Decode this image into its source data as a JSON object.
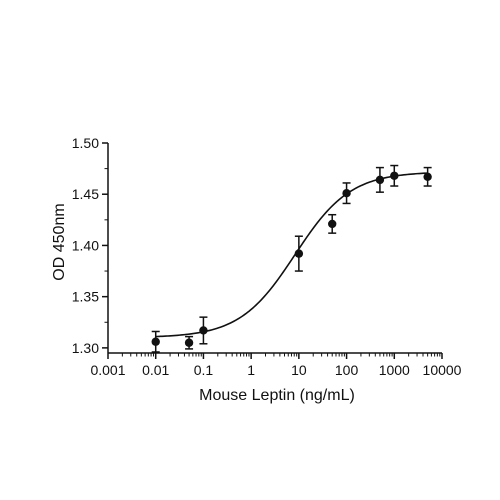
{
  "chart_data": {
    "type": "scatter",
    "title": "",
    "xlabel": "Mouse Leptin (ng/mL)",
    "ylabel": "OD 450nm",
    "x_scale": "log",
    "xlim": [
      0.001,
      10000
    ],
    "ylim": [
      1.295,
      1.5
    ],
    "x_ticks": [
      0.001,
      0.01,
      0.1,
      1,
      10,
      100,
      1000,
      10000
    ],
    "x_tick_labels": [
      "0.001",
      "0.01",
      "0.1",
      "1",
      "10",
      "100",
      "1000",
      "10000"
    ],
    "y_ticks": [
      1.3,
      1.35,
      1.4,
      1.45,
      1.5
    ],
    "y_tick_labels": [
      "1.30",
      "1.35",
      "1.40",
      "1.45",
      "1.50"
    ],
    "grid": false,
    "series": [
      {
        "points": [
          {
            "x": 0.01,
            "y": 1.306,
            "err": 0.01
          },
          {
            "x": 0.05,
            "y": 1.305,
            "err": 0.006
          },
          {
            "x": 0.1,
            "y": 1.317,
            "err": 0.013
          },
          {
            "x": 10,
            "y": 1.392,
            "err": 0.017
          },
          {
            "x": 50,
            "y": 1.421,
            "err": 0.009
          },
          {
            "x": 100,
            "y": 1.451,
            "err": 0.01
          },
          {
            "x": 500,
            "y": 1.464,
            "err": 0.012
          },
          {
            "x": 1000,
            "y": 1.468,
            "err": 0.01
          },
          {
            "x": 5000,
            "y": 1.467,
            "err": 0.009
          }
        ],
        "fit": {
          "model": "4PL",
          "bottom": 1.31,
          "top": 1.472,
          "ec50": 8.3,
          "hill": 0.75
        }
      }
    ],
    "colors": {
      "marker": "#111111",
      "line": "#111111",
      "axis": "#111111"
    }
  }
}
